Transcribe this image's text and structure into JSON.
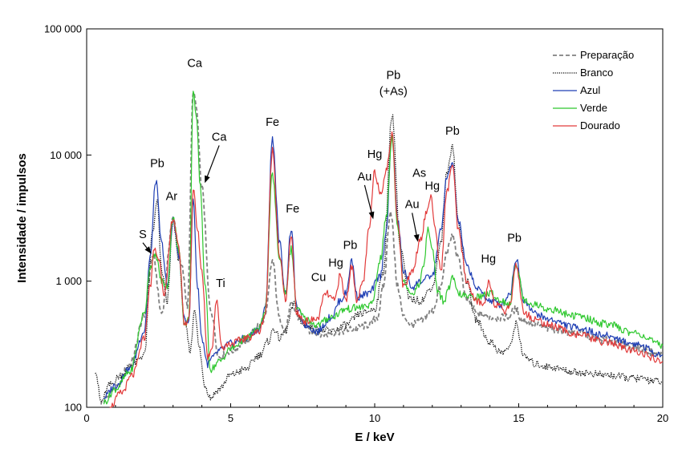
{
  "chart_data": {
    "type": "line",
    "title": "",
    "xlabel": "E / keV",
    "ylabel": "Intensidade / impulsos",
    "xlim": [
      0,
      20
    ],
    "ylim": [
      100,
      100000
    ],
    "y_scale": "log",
    "grid": false,
    "legend_position": "top-right",
    "x_ticks": [
      {
        "value": 0,
        "label": "0"
      },
      {
        "value": 5,
        "label": "5"
      },
      {
        "value": 10,
        "label": "10"
      },
      {
        "value": 15,
        "label": "15"
      },
      {
        "value": 20,
        "label": "20"
      }
    ],
    "y_ticks": [
      {
        "value": 100,
        "label": "100"
      },
      {
        "value": 1000,
        "label": "1 000"
      },
      {
        "value": 10000,
        "label": "10 000"
      },
      {
        "value": 100000,
        "label": "100 000"
      }
    ],
    "series": [
      {
        "name": "Preparação",
        "color": "#808080",
        "dash": "dashed",
        "x": [
          0.5,
          1.0,
          1.5,
          2.0,
          2.3,
          2.6,
          3.0,
          3.3,
          3.5,
          3.7,
          3.8,
          4.0,
          4.3,
          4.6,
          5.0,
          5.5,
          6.0,
          6.2,
          6.45,
          6.7,
          6.9,
          7.1,
          7.4,
          7.8,
          8.3,
          8.8,
          9.3,
          9.8,
          10.1,
          10.3,
          10.55,
          10.8,
          11.0,
          11.3,
          11.6,
          12.0,
          12.3,
          12.5,
          12.7,
          12.9,
          13.2,
          13.6,
          14.0,
          14.3,
          14.6,
          14.9,
          15.1,
          15.5,
          16.0,
          17.0,
          18.0,
          19.0,
          20.0
        ],
        "y": [
          110,
          140,
          220,
          520,
          1600,
          560,
          3100,
          1300,
          650,
          33000,
          24000,
          5500,
          600,
          250,
          280,
          330,
          450,
          520,
          1450,
          500,
          420,
          650,
          500,
          400,
          380,
          400,
          420,
          450,
          520,
          900,
          3600,
          900,
          520,
          450,
          480,
          580,
          900,
          1700,
          2300,
          1500,
          700,
          550,
          520,
          510,
          520,
          600,
          500,
          460,
          420,
          390,
          340,
          300,
          260
        ]
      },
      {
        "name": "Branco",
        "color": "#000000",
        "dash": "dotted",
        "x": [
          0.3,
          0.5,
          0.8,
          1.2,
          1.6,
          2.0,
          2.3,
          2.45,
          2.6,
          2.8,
          3.0,
          3.2,
          3.4,
          3.6,
          3.75,
          3.9,
          4.1,
          4.3,
          4.6,
          5.0,
          5.5,
          6.0,
          6.3,
          6.5,
          6.7,
          6.9,
          7.2,
          7.5,
          8.0,
          8.5,
          9.0,
          9.5,
          10.0,
          10.3,
          10.6,
          10.9,
          11.2,
          11.6,
          12.0,
          12.3,
          12.5,
          12.7,
          12.9,
          13.2,
          13.5,
          14.0,
          14.4,
          14.7,
          14.9,
          15.2,
          15.6,
          16.0,
          17.0,
          18.0,
          19.0,
          20.0
        ],
        "y": [
          200,
          110,
          150,
          180,
          220,
          260,
          2500,
          4300,
          1200,
          700,
          3000,
          1500,
          480,
          280,
          620,
          300,
          150,
          120,
          140,
          180,
          200,
          260,
          330,
          420,
          350,
          400,
          650,
          450,
          420,
          400,
          450,
          550,
          600,
          1200,
          21000,
          1800,
          720,
          700,
          900,
          2000,
          7000,
          12000,
          3000,
          1000,
          500,
          330,
          270,
          300,
          460,
          250,
          220,
          210,
          190,
          180,
          170,
          160
        ]
      },
      {
        "name": "Azul",
        "color": "#1f3fb4",
        "dash": "solid",
        "x": [
          0.6,
          1.0,
          1.5,
          2.0,
          2.2,
          2.4,
          2.6,
          2.8,
          3.0,
          3.2,
          3.4,
          3.55,
          3.7,
          3.85,
          4.0,
          4.2,
          4.4,
          4.6,
          5.0,
          5.5,
          6.0,
          6.2,
          6.45,
          6.7,
          6.9,
          7.1,
          7.3,
          7.6,
          8.0,
          8.5,
          8.8,
          9.0,
          9.2,
          9.4,
          9.8,
          10.2,
          10.4,
          10.6,
          10.8,
          11.0,
          11.3,
          11.6,
          12.0,
          12.3,
          12.5,
          12.7,
          12.9,
          13.2,
          13.6,
          14.0,
          14.4,
          14.7,
          14.9,
          15.2,
          15.6,
          16.0,
          17.0,
          18.0,
          19.0,
          20.0
        ],
        "y": [
          120,
          150,
          200,
          400,
          1500,
          6300,
          2000,
          900,
          3100,
          1600,
          480,
          500,
          4500,
          900,
          350,
          220,
          250,
          280,
          320,
          350,
          420,
          600,
          13500,
          2000,
          800,
          2600,
          600,
          450,
          400,
          520,
          700,
          800,
          1450,
          750,
          800,
          1100,
          2500,
          15000,
          3000,
          1200,
          900,
          1000,
          1100,
          2500,
          6500,
          8700,
          3000,
          1300,
          850,
          700,
          650,
          800,
          1500,
          700,
          550,
          500,
          430,
          370,
          320,
          260
        ]
      },
      {
        "name": "Verde",
        "color": "#2ec82e",
        "dash": "solid",
        "x": [
          0.6,
          1.0,
          1.5,
          2.0,
          2.2,
          2.4,
          2.6,
          2.8,
          3.0,
          3.2,
          3.4,
          3.55,
          3.7,
          3.8,
          3.95,
          4.1,
          4.3,
          4.6,
          5.0,
          5.5,
          6.0,
          6.2,
          6.45,
          6.7,
          6.9,
          7.1,
          7.3,
          7.6,
          8.0,
          8.5,
          9.0,
          9.5,
          9.9,
          10.2,
          10.4,
          10.6,
          10.8,
          11.0,
          11.3,
          11.5,
          11.7,
          11.85,
          12.0,
          12.2,
          12.4,
          12.6,
          12.7,
          12.9,
          13.2,
          13.6,
          14.0,
          14.4,
          14.7,
          14.9,
          15.2,
          15.6,
          16.0,
          17.0,
          18.0,
          19.0,
          20.0
        ],
        "y": [
          110,
          140,
          190,
          550,
          1300,
          1600,
          1000,
          900,
          3300,
          1700,
          450,
          500,
          34000,
          20000,
          5500,
          1000,
          200,
          230,
          290,
          350,
          420,
          600,
          7000,
          1500,
          800,
          1800,
          600,
          500,
          450,
          520,
          600,
          620,
          650,
          1500,
          3200,
          14000,
          2700,
          1000,
          800,
          900,
          1300,
          2600,
          1800,
          800,
          700,
          900,
          1050,
          800,
          750,
          750,
          800,
          700,
          650,
          1400,
          700,
          650,
          600,
          530,
          460,
          390,
          310
        ]
      },
      {
        "name": "Dourado",
        "color": "#e23a3a",
        "dash": "solid",
        "x": [
          0.8,
          1.2,
          1.6,
          2.0,
          2.2,
          2.35,
          2.5,
          2.7,
          3.0,
          3.2,
          3.4,
          3.55,
          3.7,
          3.85,
          4.0,
          4.2,
          4.35,
          4.5,
          4.7,
          5.0,
          5.5,
          6.0,
          6.2,
          6.45,
          6.7,
          6.9,
          7.1,
          7.3,
          7.6,
          8.0,
          8.3,
          8.6,
          8.8,
          9.0,
          9.2,
          9.4,
          9.6,
          9.8,
          10.0,
          10.2,
          10.4,
          10.6,
          10.8,
          11.0,
          11.3,
          11.6,
          11.8,
          11.95,
          12.1,
          12.3,
          12.5,
          12.7,
          12.9,
          13.2,
          13.5,
          13.8,
          13.95,
          14.2,
          14.5,
          14.7,
          14.9,
          15.2,
          15.6,
          16.0,
          17.0,
          18.0,
          19.0,
          20.0
        ],
        "y": [
          100,
          130,
          180,
          350,
          900,
          1800,
          1500,
          800,
          3200,
          1800,
          450,
          500,
          5500,
          2500,
          1200,
          250,
          300,
          700,
          300,
          320,
          350,
          400,
          550,
          11000,
          1600,
          700,
          2200,
          550,
          480,
          500,
          800,
          700,
          1100,
          700,
          1300,
          700,
          1000,
          2500,
          7300,
          5000,
          7500,
          14500,
          3000,
          900,
          1200,
          2200,
          3500,
          4800,
          2500,
          1200,
          5000,
          8500,
          2500,
          1000,
          700,
          650,
          1000,
          650,
          580,
          650,
          1350,
          550,
          500,
          450,
          380,
          330,
          280,
          230
        ]
      }
    ],
    "annotations": [
      {
        "text": "S",
        "x": 1.95,
        "y": 2200,
        "arrow_to": {
          "x": 2.25,
          "y": 1650
        }
      },
      {
        "text": "Pb",
        "x": 2.45,
        "y": 8000
      },
      {
        "text": "Ar",
        "x": 2.95,
        "y": 4400
      },
      {
        "text": "Ca",
        "x": 3.75,
        "y": 50000
      },
      {
        "text": "Ca",
        "x": 4.6,
        "y": 13000,
        "arrow_to": {
          "x": 4.1,
          "y": 6000
        }
      },
      {
        "text": "Ti",
        "x": 4.65,
        "y": 900
      },
      {
        "text": "Fe",
        "x": 6.45,
        "y": 17000
      },
      {
        "text": "Fe",
        "x": 7.15,
        "y": 3500
      },
      {
        "text": "Cu",
        "x": 8.05,
        "y": 1000
      },
      {
        "text": "Hg",
        "x": 8.65,
        "y": 1300
      },
      {
        "text": "Pb",
        "x": 9.15,
        "y": 1800
      },
      {
        "text": "Au",
        "x": 9.65,
        "y": 6300,
        "arrow_to": {
          "x": 9.95,
          "y": 3100
        }
      },
      {
        "text": "Hg",
        "x": 10.0,
        "y": 9500
      },
      {
        "text": "Pb",
        "x": 10.65,
        "y": 40000
      },
      {
        "text": "(+As)",
        "x": 10.65,
        "y": 30000
      },
      {
        "text": "As",
        "x": 11.55,
        "y": 6700
      },
      {
        "text": "Au",
        "x": 11.3,
        "y": 3800,
        "arrow_to": {
          "x": 11.5,
          "y": 2050
        }
      },
      {
        "text": "Hg",
        "x": 12.0,
        "y": 5300
      },
      {
        "text": "Pb",
        "x": 12.7,
        "y": 14500
      },
      {
        "text": "Hg",
        "x": 13.95,
        "y": 1400
      },
      {
        "text": "Pb",
        "x": 14.85,
        "y": 2050
      }
    ]
  }
}
